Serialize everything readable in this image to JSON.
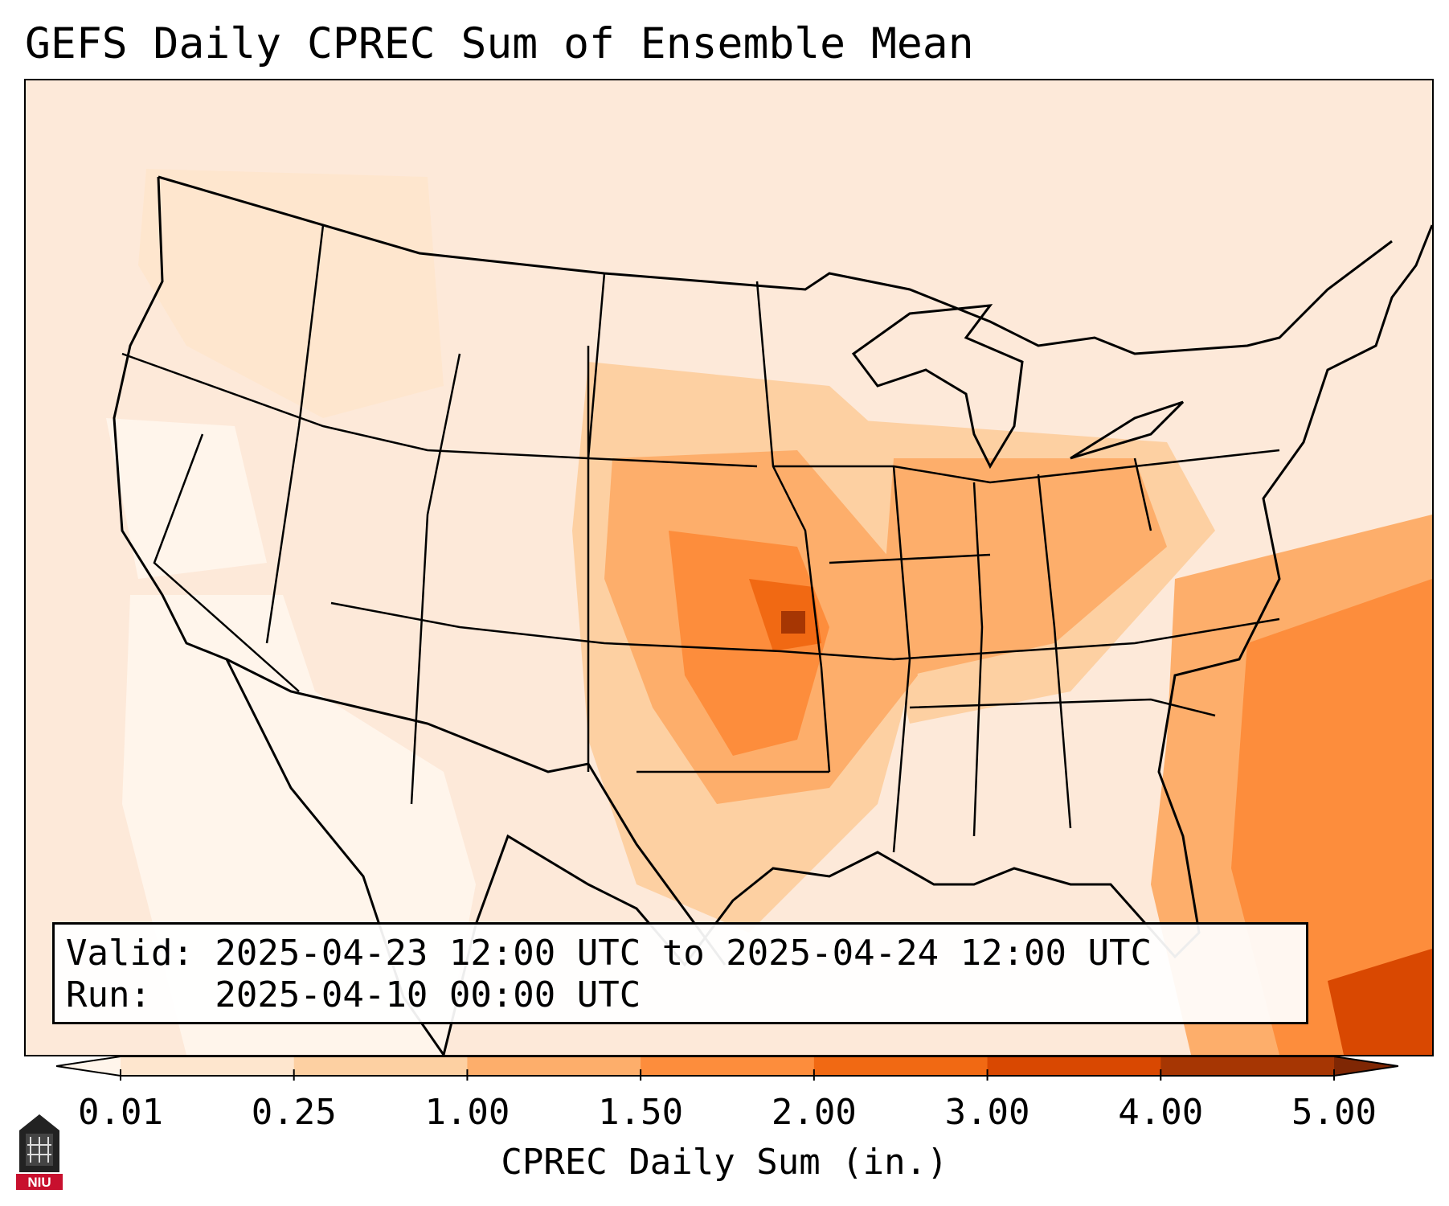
{
  "title": "GEFS Daily CPREC Sum of Ensemble Mean",
  "info": {
    "valid_line": "Valid: 2025-04-23 12:00 UTC to 2025-04-24 12:00 UTC",
    "run_line": "Run:   2025-04-10 00:00 UTC"
  },
  "colorbar": {
    "label": "CPREC Daily Sum (in.)",
    "ticks": [
      "0.01",
      "0.25",
      "1.00",
      "1.50",
      "2.00",
      "3.00",
      "4.00",
      "5.00"
    ],
    "colors": [
      "#fff5eb",
      "#fee6ce",
      "#fdd0a2",
      "#fdae6b",
      "#fd8d3c",
      "#f16913",
      "#d94801",
      "#a63603",
      "#7f2704"
    ],
    "extend": "both"
  },
  "logo": {
    "text": "NIU",
    "color": "#c8102e"
  }
}
